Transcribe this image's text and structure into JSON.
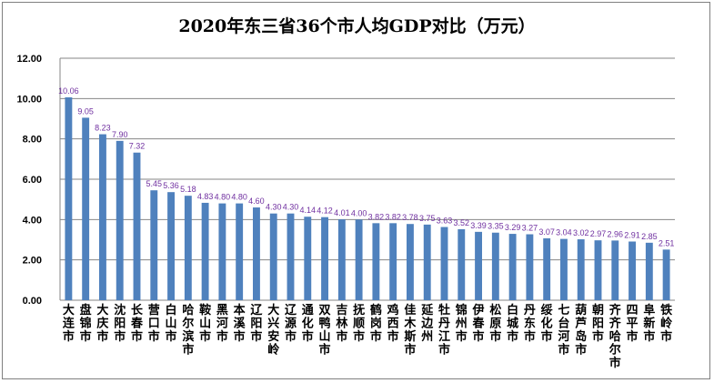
{
  "chart_data": {
    "type": "bar",
    "title": "2020年东三省36个市人均GDP对比（万元）",
    "xlabel": "",
    "ylabel": "",
    "ylim": [
      0,
      12
    ],
    "yticks": [
      "0.00",
      "2.00",
      "4.00",
      "6.00",
      "8.00",
      "10.00",
      "12.00"
    ],
    "grid": true,
    "legend": "none",
    "bar_color": "#4f81bd",
    "label_color": "#7030a0",
    "categories": [
      "大连市",
      "盘锦市",
      "大庆市",
      "沈阳市",
      "长春市",
      "营口市",
      "白山市",
      "哈尔滨市",
      "鞍山市",
      "黑河市",
      "本溪市",
      "辽阳市",
      "大兴安岭",
      "辽源市",
      "通化市",
      "双鸭山市",
      "吉林市",
      "抚顺市",
      "鹤岗市",
      "鸡西市",
      "佳木斯市",
      "延边州",
      "牡丹江市",
      "锦州市",
      "伊春市",
      "松原市",
      "白城市",
      "丹东市",
      "绥化市",
      "七台河市",
      "葫芦岛市",
      "朝阳市",
      "齐齐哈尔市",
      "四平市",
      "阜新市",
      "铁岭市"
    ],
    "values": [
      10.06,
      9.05,
      8.23,
      7.9,
      7.32,
      5.45,
      5.36,
      5.18,
      4.83,
      4.8,
      4.8,
      4.6,
      4.3,
      4.3,
      4.14,
      4.12,
      4.01,
      4.0,
      3.82,
      3.82,
      3.78,
      3.75,
      3.63,
      3.52,
      3.39,
      3.35,
      3.29,
      3.27,
      3.07,
      3.04,
      3.02,
      2.97,
      2.96,
      2.91,
      2.85,
      2.51
    ],
    "value_labels": [
      "10.06",
      "9.05",
      "8.23",
      "7.90",
      "7.32",
      "5.45",
      "5.36",
      "5.18",
      "4.83",
      "4.80",
      "4.80",
      "4.60",
      "4.30",
      "4.30",
      "4.14",
      "4.12",
      "4.01",
      "4.00",
      "3.82",
      "3.82",
      "3.78",
      "3.75",
      "3.63",
      "3.52",
      "3.39",
      "3.35",
      "3.29",
      "3.27",
      "3.07",
      "3.04",
      "3.02",
      "2.97",
      "2.96",
      "2.91",
      "2.85",
      "2.51"
    ]
  }
}
